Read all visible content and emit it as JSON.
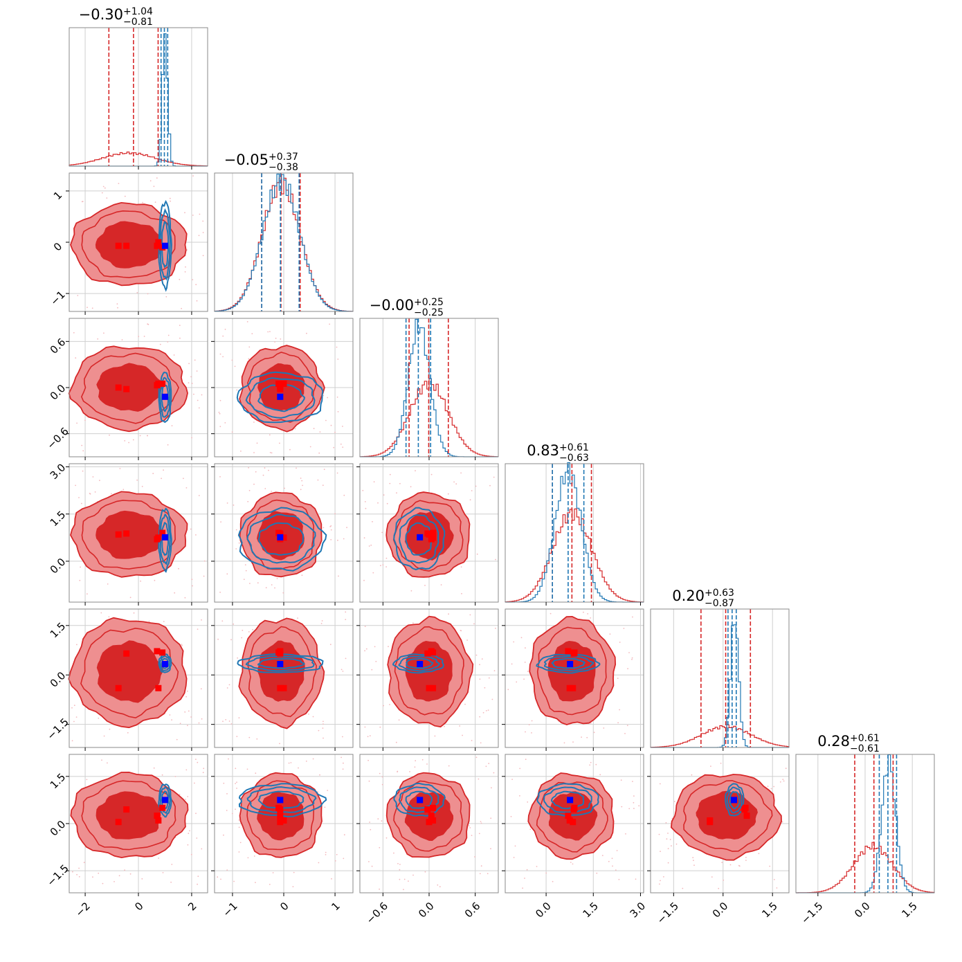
{
  "chart_data": {
    "type": "corner",
    "n_params": 6,
    "grid": true,
    "colors": {
      "red": "#d62728",
      "blue": "#1f77b4",
      "red_light": "#ee8f90",
      "marker_red": "#ff0000",
      "marker_blue": "#0000ff"
    },
    "series": [
      {
        "color": "red",
        "style": "filled-contours-and-histograms"
      },
      {
        "color": "blue",
        "style": "contour-lines-and-histograms"
      }
    ],
    "params": [
      {
        "title": {
          "median": "−0.30",
          "plus": "+1.04",
          "minus": "−0.81"
        },
        "range": [
          -2.6,
          2.6
        ],
        "ticks": [
          -2,
          0,
          2
        ],
        "tick_labels": [
          "−2",
          "0",
          "2"
        ],
        "red": {
          "mean": -0.35,
          "sd": 1.0,
          "quantiles": [
            -1.11,
            0.74
          ]
        },
        "blue": {
          "mean": 1.0,
          "sd": 0.1,
          "quantiles": [
            0.85,
            1.1
          ]
        }
      },
      {
        "title": {
          "median": "−0.05",
          "plus": "+0.37",
          "minus": "−0.38"
        },
        "range": [
          -1.35,
          1.35
        ],
        "ticks": [
          -1,
          0,
          1
        ],
        "tick_labels": [
          "−1",
          "0",
          "1"
        ],
        "red": {
          "mean": -0.05,
          "sd": 0.37,
          "quantiles": [
            -0.43,
            0.32
          ]
        },
        "blue": {
          "mean": -0.05,
          "sd": 0.36,
          "quantiles": [
            -0.43,
            0.3
          ]
        },
        "y_ticks": [
          -1,
          0,
          1
        ],
        "y_tick_labels": [
          "−1",
          "0",
          "1"
        ]
      },
      {
        "title": {
          "median": "−0.00",
          "plus": "+0.25",
          "minus": "−0.25"
        },
        "range": [
          -0.9,
          0.9
        ],
        "ticks": [
          -0.6,
          0.0,
          0.6
        ],
        "tick_labels": [
          "−0.6",
          "0.0",
          "0.6"
        ],
        "red": {
          "mean": 0.0,
          "sd": 0.25,
          "quantiles": [
            -0.26,
            0.25
          ]
        },
        "blue": {
          "mean": -0.13,
          "sd": 0.14,
          "quantiles": [
            -0.3,
            0.02
          ]
        },
        "y_ticks": [
          -0.6,
          0.0,
          0.6
        ],
        "y_tick_labels": [
          "−0.6",
          "0.0",
          "0.6"
        ]
      },
      {
        "title": {
          "median": "0.83",
          "plus": "+0.61",
          "minus": "−0.63"
        },
        "range": [
          -1.3,
          3.1
        ],
        "ticks": [
          0.0,
          1.5,
          3.0
        ],
        "tick_labels": [
          "0.0",
          "1.5",
          "3.0"
        ],
        "red": {
          "mean": 0.83,
          "sd": 0.62,
          "quantiles": [
            0.2,
            1.44
          ]
        },
        "blue": {
          "mean": 0.7,
          "sd": 0.42,
          "quantiles": [
            0.2,
            1.2
          ]
        },
        "y_ticks": [
          0.0,
          1.5,
          3.0
        ],
        "y_tick_labels": [
          "0.0",
          "1.5",
          "3.0"
        ]
      },
      {
        "title": {
          "median": "0.20",
          "plus": "+0.63",
          "minus": "−0.87"
        },
        "range": [
          -2.2,
          2.0
        ],
        "ticks": [
          -1.5,
          0.0,
          1.5
        ],
        "tick_labels": [
          "−1.5",
          "0.0",
          "1.5"
        ],
        "red": {
          "mean": 0.1,
          "sd": 0.75,
          "quantiles": [
            -0.67,
            0.83
          ]
        },
        "blue": {
          "mean": 0.35,
          "sd": 0.12,
          "quantiles": [
            0.15,
            0.4
          ]
        },
        "y_ticks": [
          -1.5,
          0.0,
          1.5
        ],
        "y_tick_labels": [
          "−1.5",
          "0.0",
          "1.5"
        ]
      },
      {
        "title": {
          "median": "0.28",
          "plus": "+0.61",
          "minus": "−0.61"
        },
        "range": [
          -2.2,
          2.2
        ],
        "ticks": [
          -1.5,
          0.0,
          1.5
        ],
        "tick_labels": [
          "−1.5",
          "0.0",
          "1.5"
        ],
        "red": {
          "mean": 0.25,
          "sd": 0.62,
          "quantiles": [
            -0.33,
            0.89
          ]
        },
        "blue": {
          "mean": 0.75,
          "sd": 0.22,
          "quantiles": [
            0.45,
            1.0
          ]
        },
        "y_ticks": [
          -1.5,
          0.0,
          1.5
        ],
        "y_tick_labels": [
          "−1.5",
          "0.0",
          "1.5"
        ]
      }
    ],
    "markers": {
      "blue": [
        1.0,
        -0.07,
        -0.12,
        0.76,
        0.33,
        0.75
      ],
      "red": [
        [
          -0.75,
          -0.07,
          0.0,
          0.85,
          -0.4,
          0.05
        ],
        [
          -0.45,
          -0.07,
          -0.02,
          0.88,
          0.65,
          0.45
        ],
        [
          0.7,
          -0.07,
          0.03,
          0.7,
          0.72,
          0.25
        ],
        [
          0.75,
          0.0,
          0.05,
          0.75,
          -0.4,
          0.1
        ],
        [
          0.9,
          -0.1,
          0.05,
          0.9,
          0.68,
          0.5
        ]
      ]
    }
  }
}
